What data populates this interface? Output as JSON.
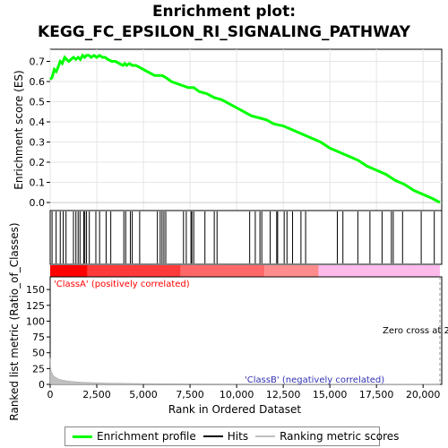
{
  "chart_data": {
    "type": "line",
    "title_line1": "Enrichment plot:",
    "title_line2": "KEGG_FC_EPSILON_RI_SIGNALING_PATHWAY",
    "es_panel": {
      "ylabel": "Enrichment score (ES)",
      "ylim": [
        -0.04,
        0.76
      ],
      "yticks": [
        0.0,
        0.1,
        0.2,
        0.3,
        0.4,
        0.5,
        0.6,
        0.7
      ],
      "ytick_labels": [
        "0.0",
        "0.1",
        "0.2",
        "0.3",
        "0.4",
        "0.5",
        "0.6",
        "0.7"
      ],
      "series_name": "Enrichment profile",
      "color": "#00ff00",
      "x": [
        0,
        100,
        220,
        320,
        420,
        540,
        650,
        780,
        880,
        1000,
        1120,
        1250,
        1380,
        1500,
        1620,
        1740,
        1850,
        1950,
        2080,
        2200,
        2350,
        2500,
        2650,
        2800,
        2950,
        3100,
        3300,
        3500,
        3700,
        3900,
        4000,
        4100,
        4250,
        4400,
        4600,
        4800,
        5000,
        5200,
        5400,
        5600,
        5800,
        6000,
        6200,
        6500,
        6800,
        7100,
        7400,
        7700,
        8000,
        8400,
        8800,
        9200,
        9600,
        10000,
        10400,
        10800,
        11200,
        11600,
        12000,
        12500,
        13000,
        13500,
        14000,
        14500,
        15000,
        15500,
        16000,
        16500,
        17000,
        17500,
        18000,
        18500,
        19000,
        19500,
        20000,
        20500,
        20900
      ],
      "y": [
        0.61,
        0.62,
        0.66,
        0.65,
        0.67,
        0.7,
        0.69,
        0.72,
        0.71,
        0.7,
        0.71,
        0.72,
        0.71,
        0.72,
        0.71,
        0.73,
        0.72,
        0.73,
        0.73,
        0.72,
        0.73,
        0.72,
        0.73,
        0.72,
        0.72,
        0.71,
        0.7,
        0.7,
        0.69,
        0.68,
        0.69,
        0.68,
        0.69,
        0.68,
        0.68,
        0.67,
        0.66,
        0.65,
        0.64,
        0.63,
        0.63,
        0.63,
        0.62,
        0.6,
        0.59,
        0.58,
        0.57,
        0.57,
        0.55,
        0.54,
        0.52,
        0.51,
        0.49,
        0.47,
        0.45,
        0.43,
        0.42,
        0.41,
        0.39,
        0.38,
        0.36,
        0.34,
        0.32,
        0.3,
        0.27,
        0.25,
        0.23,
        0.21,
        0.18,
        0.16,
        0.14,
        0.11,
        0.09,
        0.06,
        0.04,
        0.02,
        0.0
      ]
    },
    "hits": [
      100,
      320,
      540,
      700,
      850,
      1250,
      1380,
      1500,
      1600,
      1800,
      1860,
      1950,
      2100,
      2450,
      2650,
      3000,
      3250,
      3950,
      4050,
      4300,
      4400,
      4800,
      5750,
      5900,
      6000,
      6100,
      6200,
      7150,
      7300,
      7550,
      7600,
      7700,
      8300,
      8800,
      8950,
      10700,
      11000,
      11250,
      11350,
      11800,
      12150,
      12200,
      12550,
      12700,
      13000,
      13450,
      13700,
      15400,
      15700,
      16500,
      17150,
      17800,
      18300,
      18400,
      18900,
      19900,
      20600
    ],
    "bar": {
      "segments": [
        {
          "from": 0,
          "to": 2000,
          "color": "#ff0000"
        },
        {
          "from": 2000,
          "to": 7000,
          "color": "#ff3a3a"
        },
        {
          "from": 7000,
          "to": 11500,
          "color": "#ff6868"
        },
        {
          "from": 11500,
          "to": 14400,
          "color": "#ff8c8c"
        },
        {
          "from": 14400,
          "to": 20900,
          "color": "#ffbaec"
        }
      ]
    },
    "metric_panel": {
      "ylabel": "Ranked list metric (Ratio_of_Classes)",
      "ylim": [
        0,
        170
      ],
      "yticks": [
        0,
        25,
        50,
        75,
        100,
        125,
        150
      ],
      "ytick_labels": [
        "0",
        "25",
        "50",
        "75",
        "100",
        "125",
        "150"
      ],
      "series_name": "Ranking metric scores",
      "x": [
        0,
        30,
        60,
        100,
        150,
        200,
        300,
        400,
        500,
        700,
        900,
        1200,
        1600,
        2000,
        2500,
        3000,
        4000,
        6000,
        10000,
        15000,
        20000,
        20900
      ],
      "y": [
        42,
        26,
        21,
        18,
        15,
        13,
        11,
        9.5,
        8,
        6.5,
        5.5,
        4.5,
        3.5,
        3,
        2.5,
        2,
        1.5,
        1,
        0.6,
        0.3,
        0.1,
        0
      ]
    },
    "xlabel": "Rank in Ordered Dataset",
    "xlim": [
      0,
      21000
    ],
    "xticks": [
      0,
      2500,
      5000,
      7500,
      10000,
      12500,
      15000,
      17500,
      20000
    ],
    "xtick_labels": [
      "0",
      "2,500",
      "5,000",
      "7,500",
      "10,000",
      "12,500",
      "15,000",
      "17,500",
      "20,000"
    ],
    "annotations": {
      "classA": "'ClassA' (positively correlated)",
      "classB": "'ClassB' (negatively correlated)",
      "zero_cross": "Zero cross at 2",
      "zero_cross_x": 20900
    },
    "legend": {
      "enrichment": "Enrichment profile",
      "hits": "Hits",
      "metric": "Ranking metric scores",
      "placement": "bottom"
    }
  }
}
